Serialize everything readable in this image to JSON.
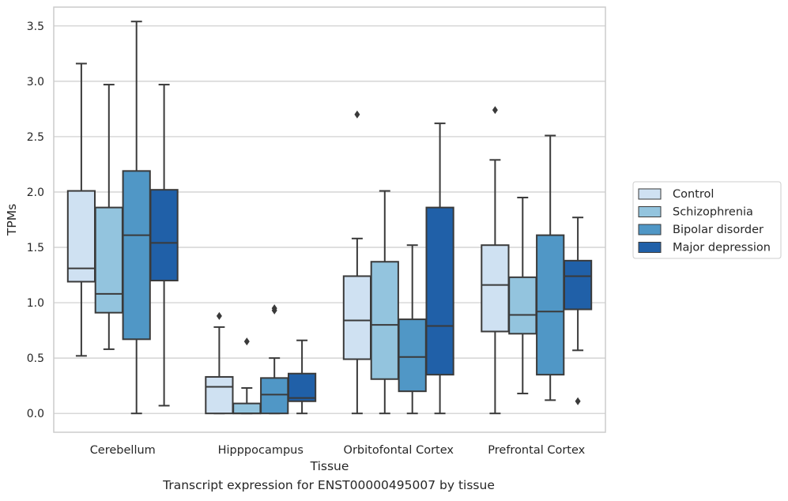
{
  "chart_data": {
    "type": "box",
    "title": "",
    "caption": "Transcript expression for ENST00000495007 by tissue",
    "xlabel": "Tissue",
    "ylabel": "TPMs",
    "ylim": [
      -0.17,
      3.67
    ],
    "yticks": [
      "0.0",
      "0.5",
      "1.0",
      "1.5",
      "2.0",
      "2.5",
      "3.0",
      "3.5"
    ],
    "grid": true,
    "legend_position": "right",
    "categories": [
      "Cerebellum",
      "Hipppocampus",
      "Orbitofontal Cortex",
      "Prefrontal Cortex"
    ],
    "series": [
      {
        "name": "Control",
        "color": "#cfe1f2",
        "boxes": [
          {
            "min": 0.52,
            "q1": 1.19,
            "median": 1.31,
            "q3": 2.01,
            "max": 3.16,
            "outliers": []
          },
          {
            "min": 0.0,
            "q1": 0.0,
            "median": 0.24,
            "q3": 0.33,
            "max": 0.78,
            "outliers": [
              0.88
            ]
          },
          {
            "min": 0.0,
            "q1": 0.49,
            "median": 0.84,
            "q3": 1.24,
            "max": 1.58,
            "outliers": [
              2.7
            ]
          },
          {
            "min": 0.0,
            "q1": 0.74,
            "median": 1.16,
            "q3": 1.52,
            "max": 2.29,
            "outliers": [
              2.74
            ]
          }
        ]
      },
      {
        "name": "Schizophrenia",
        "color": "#93c4de",
        "boxes": [
          {
            "min": 0.58,
            "q1": 0.91,
            "median": 1.08,
            "q3": 1.86,
            "max": 2.97,
            "outliers": []
          },
          {
            "min": 0.0,
            "q1": 0.0,
            "median": 0.0,
            "q3": 0.09,
            "max": 0.23,
            "outliers": [
              0.65
            ]
          },
          {
            "min": 0.0,
            "q1": 0.31,
            "median": 0.8,
            "q3": 1.37,
            "max": 2.01,
            "outliers": []
          },
          {
            "min": 0.18,
            "q1": 0.72,
            "median": 0.89,
            "q3": 1.23,
            "max": 1.95,
            "outliers": []
          }
        ]
      },
      {
        "name": "Bipolar disorder",
        "color": "#5097c6",
        "boxes": [
          {
            "min": 0.0,
            "q1": 0.67,
            "median": 1.61,
            "q3": 2.19,
            "max": 3.54,
            "outliers": []
          },
          {
            "min": 0.0,
            "q1": 0.0,
            "median": 0.17,
            "q3": 0.32,
            "max": 0.5,
            "outliers": [
              0.93,
              0.95
            ]
          },
          {
            "min": 0.0,
            "q1": 0.2,
            "median": 0.51,
            "q3": 0.85,
            "max": 1.52,
            "outliers": []
          },
          {
            "min": 0.12,
            "q1": 0.35,
            "median": 0.92,
            "q3": 1.61,
            "max": 2.51,
            "outliers": []
          }
        ]
      },
      {
        "name": "Major depression",
        "color": "#2060a8",
        "boxes": [
          {
            "min": 0.07,
            "q1": 1.2,
            "median": 1.54,
            "q3": 2.02,
            "max": 2.97,
            "outliers": []
          },
          {
            "min": 0.0,
            "q1": 0.11,
            "median": 0.14,
            "q3": 0.36,
            "max": 0.66,
            "outliers": []
          },
          {
            "min": 0.0,
            "q1": 0.35,
            "median": 0.79,
            "q3": 1.86,
            "max": 2.62,
            "outliers": []
          },
          {
            "min": 0.57,
            "q1": 0.94,
            "median": 1.24,
            "q3": 1.38,
            "max": 1.77,
            "outliers": [
              0.11
            ]
          }
        ]
      }
    ]
  }
}
